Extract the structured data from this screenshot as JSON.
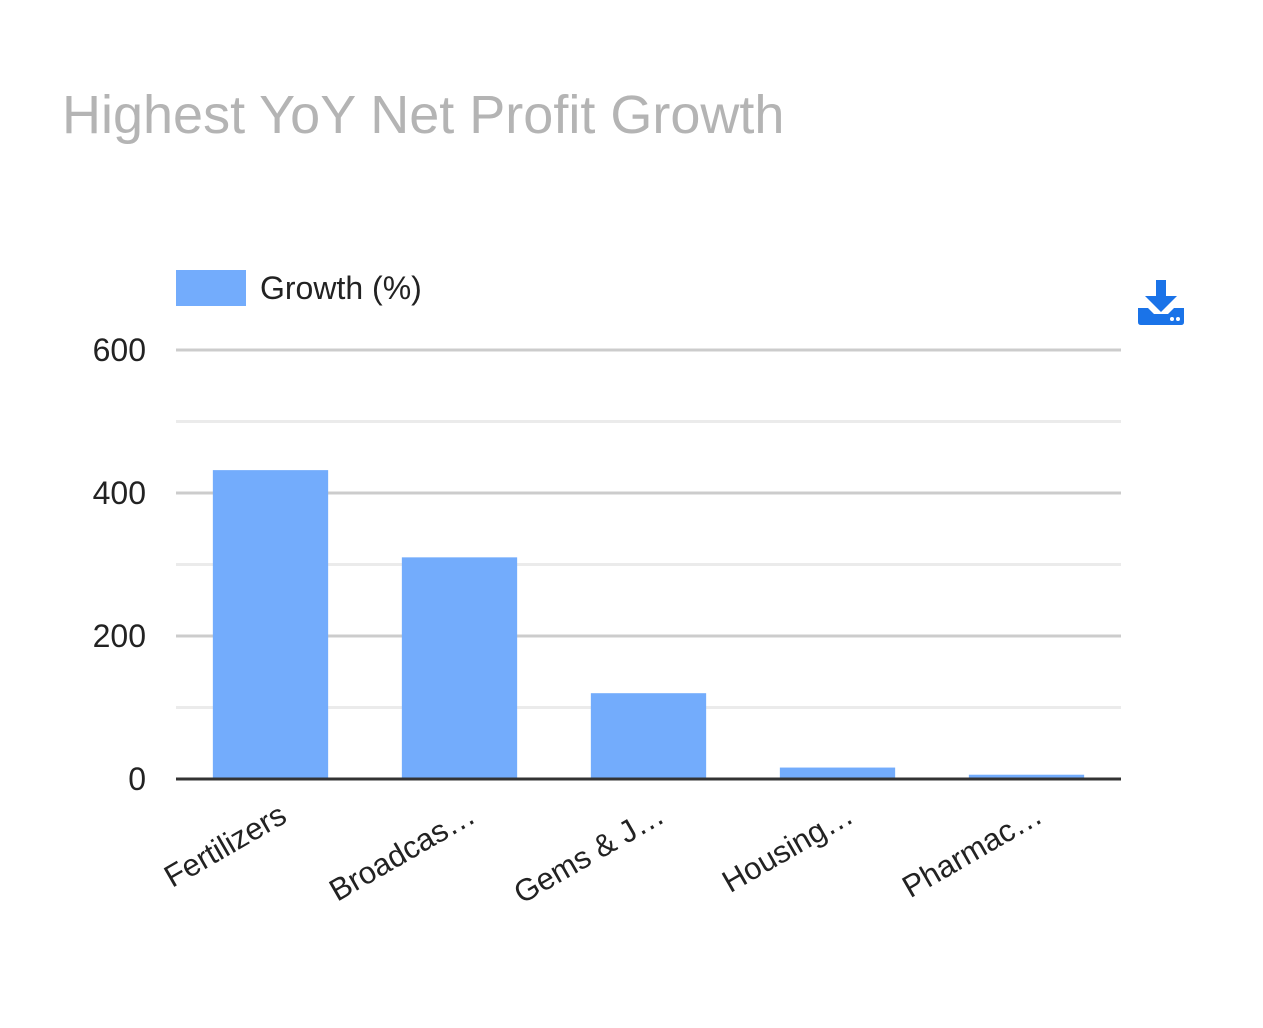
{
  "chart_data": {
    "type": "bar",
    "title": "Highest YoY Net Profit Growth",
    "xlabel": "",
    "ylabel": "",
    "categories": [
      "Fertilizers",
      "Broadcas…",
      "Gems & J…",
      "Housing…",
      "Pharmac…"
    ],
    "series": [
      {
        "name": "Growth (%)",
        "values": [
          432,
          310,
          120,
          16,
          6
        ]
      }
    ],
    "ylim": [
      0,
      600
    ],
    "yticks": [
      0,
      200,
      400,
      600
    ],
    "grid": true,
    "legend_position": "top-left",
    "bar_color": "#73acfc"
  },
  "toolbar": {
    "download_icon": "download-icon"
  }
}
